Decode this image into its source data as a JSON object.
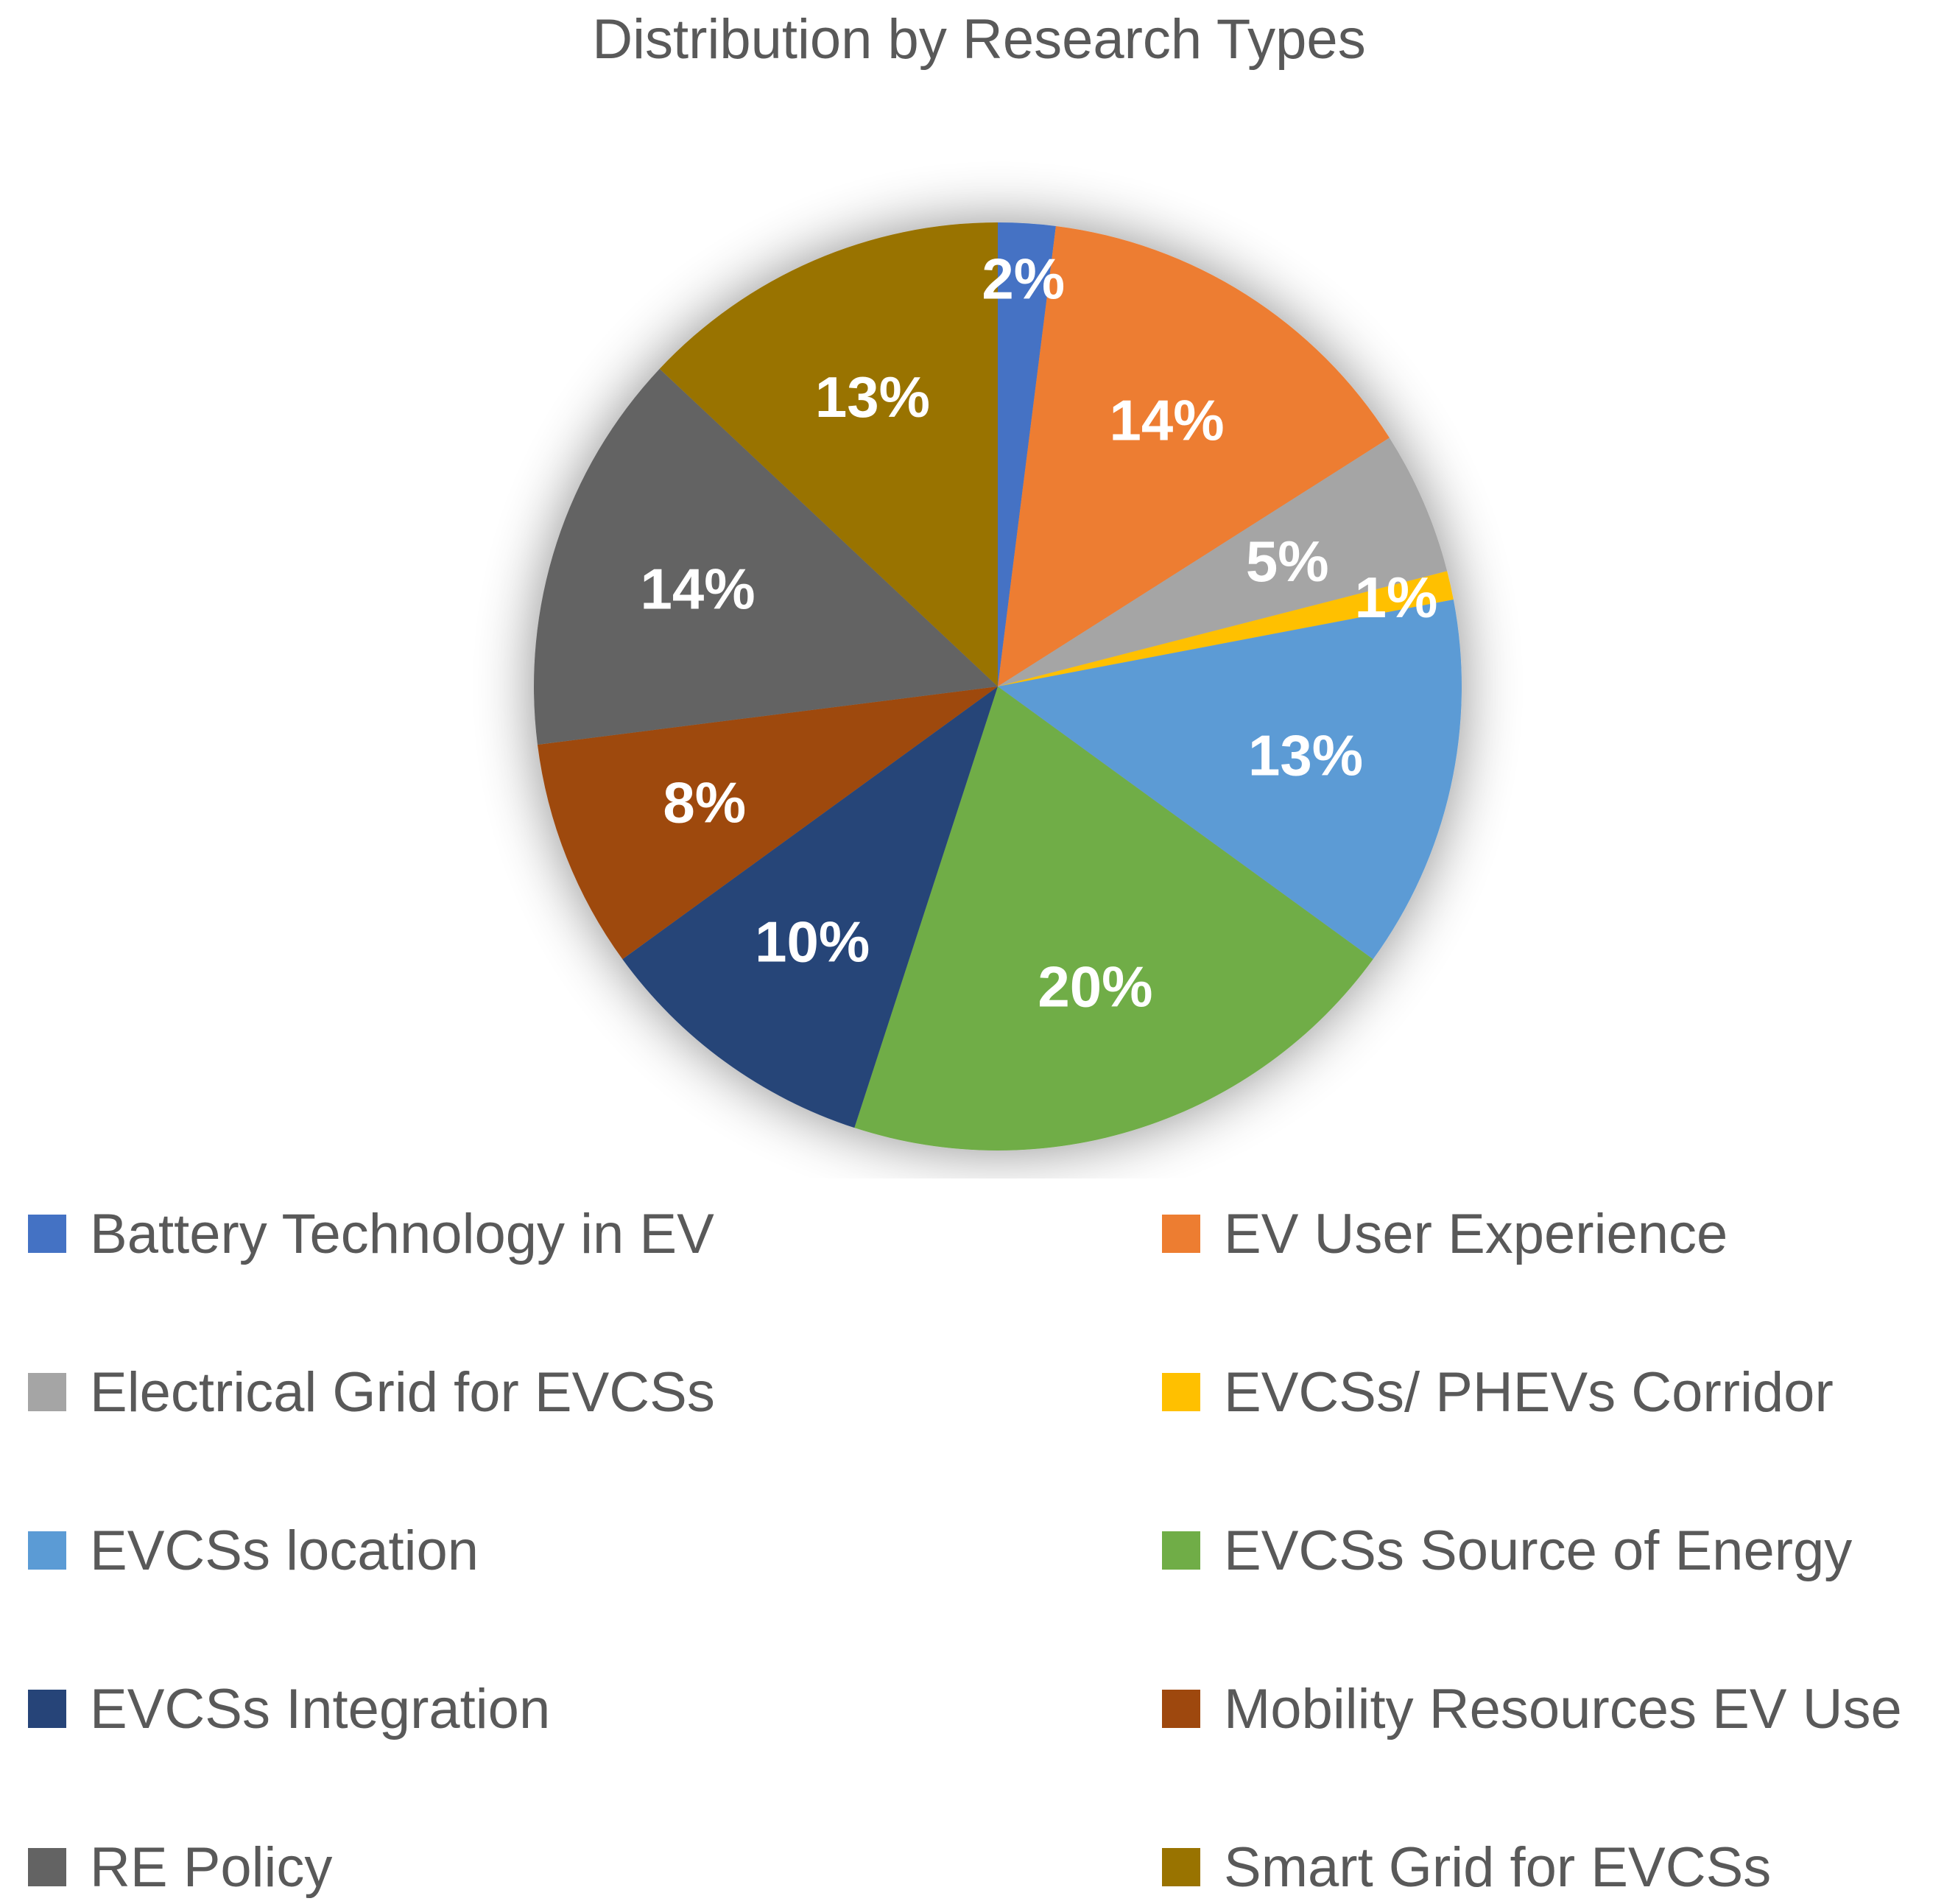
{
  "chart_data": {
    "type": "pie",
    "title": "Distribution by Research Types",
    "legend_position": "bottom",
    "data_labels_unit": "%",
    "slices": [
      {
        "name": "Battery Technology in EV",
        "value": 2,
        "color": "#4472C4"
      },
      {
        "name": "EV User Experience",
        "value": 14,
        "color": "#ED7D31"
      },
      {
        "name": "Electrical Grid for EVCSs",
        "value": 5,
        "color": "#A5A5A5"
      },
      {
        "name": "EVCSs/ PHEVs Corridor",
        "value": 1,
        "color": "#FFC000"
      },
      {
        "name": "EVCSs location",
        "value": 13,
        "color": "#5B9BD5"
      },
      {
        "name": "EVCSs Source of Energy",
        "value": 20,
        "color": "#70AD47"
      },
      {
        "name": "EVCSs Integration",
        "value": 10,
        "color": "#264478"
      },
      {
        "name": "Mobility Resources EV Use",
        "value": 8,
        "color": "#9E480E"
      },
      {
        "name": "RE Policy",
        "value": 14,
        "color": "#636363"
      },
      {
        "name": "Smart Grid for EVCSs",
        "value": 13,
        "color": "#997300"
      }
    ]
  }
}
